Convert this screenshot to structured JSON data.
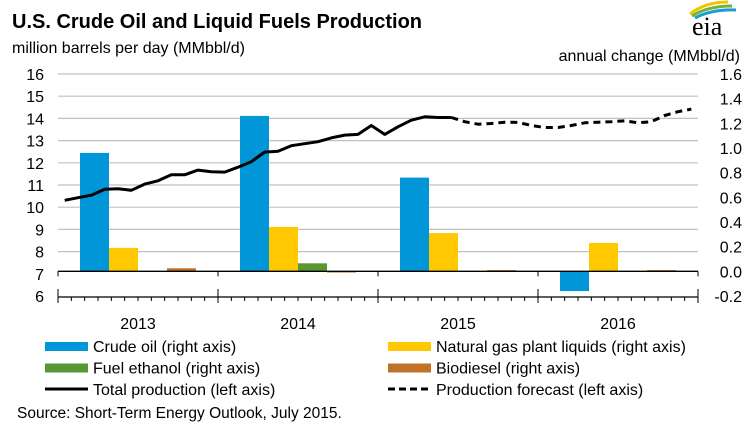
{
  "chart_data": {
    "type": "bar+line",
    "title": "U.S. Crude Oil and Liquid Fuels Production",
    "left_axis_label": "million barrels per day (MMbbl/d)",
    "right_axis_label": "annual change (MMbbl/d)",
    "left_ylim": [
      6,
      16
    ],
    "left_ticks": [
      "16",
      "15",
      "14",
      "13",
      "12",
      "11",
      "10",
      "9",
      "8",
      "7",
      "6"
    ],
    "right_ylim": [
      -0.2,
      1.6
    ],
    "right_ticks": [
      "1.6",
      "1.4",
      "1.2",
      "1.0",
      "0.8",
      "0.6",
      "0.4",
      "0.2",
      "0.0",
      "-0.2"
    ],
    "grid": true,
    "categories": [
      "2013",
      "2014",
      "2015",
      "2016"
    ],
    "bar_series": [
      {
        "name": "Crude oil (right axis)",
        "color": "#0096d7",
        "values": [
          0.96,
          1.26,
          0.76,
          -0.16
        ]
      },
      {
        "name": "Natural gas plant liquids (right axis)",
        "color": "#ffc800",
        "values": [
          0.19,
          0.36,
          0.31,
          0.23
        ]
      },
      {
        "name": "Fuel ethanol (right axis)",
        "color": "#5a9632",
        "values": [
          0.0,
          0.065,
          0.0,
          0.0
        ]
      },
      {
        "name": "Biodiesel (right axis)",
        "color": "#be7328",
        "values": [
          0.025,
          -0.005,
          0.01,
          0.01
        ]
      }
    ],
    "line_series": [
      {
        "name": "Total production (left axis)",
        "color": "#000000",
        "style": "solid",
        "x": [
          "2013-01",
          "2013-02",
          "2013-03",
          "2013-04",
          "2013-05",
          "2013-06",
          "2013-07",
          "2013-08",
          "2013-09",
          "2013-10",
          "2013-11",
          "2013-12",
          "2014-01",
          "2014-02",
          "2014-03",
          "2014-04",
          "2014-05",
          "2014-06",
          "2014-07",
          "2014-08",
          "2014-09",
          "2014-10",
          "2014-11",
          "2014-12",
          "2015-01",
          "2015-02",
          "2015-03",
          "2015-04",
          "2015-05",
          "2015-06"
        ],
        "values": [
          10.31,
          10.43,
          10.54,
          10.81,
          10.83,
          10.76,
          11.04,
          11.19,
          11.46,
          11.46,
          11.67,
          11.6,
          11.58,
          11.8,
          12.05,
          12.48,
          12.52,
          12.77,
          12.86,
          12.95,
          13.12,
          13.25,
          13.28,
          13.68,
          13.28,
          13.62,
          13.92,
          14.07,
          14.04,
          14.04
        ]
      },
      {
        "name": "Production forecast (left axis)",
        "color": "#000000",
        "style": "dashed",
        "x": [
          "2015-06",
          "2015-07",
          "2015-08",
          "2015-09",
          "2015-10",
          "2015-11",
          "2015-12",
          "2016-01",
          "2016-02",
          "2016-03",
          "2016-04",
          "2016-05",
          "2016-06",
          "2016-07",
          "2016-08",
          "2016-09",
          "2016-10",
          "2016-11",
          "2016-12"
        ],
        "values": [
          14.04,
          13.85,
          13.74,
          13.77,
          13.83,
          13.82,
          13.68,
          13.59,
          13.59,
          13.68,
          13.8,
          13.83,
          13.85,
          13.89,
          13.8,
          13.85,
          14.13,
          14.3,
          14.42
        ]
      }
    ],
    "legend_placement": "bottom",
    "source": "Source: Short-Term Energy Outlook, July 2015."
  },
  "logo": {
    "text": "eia"
  }
}
